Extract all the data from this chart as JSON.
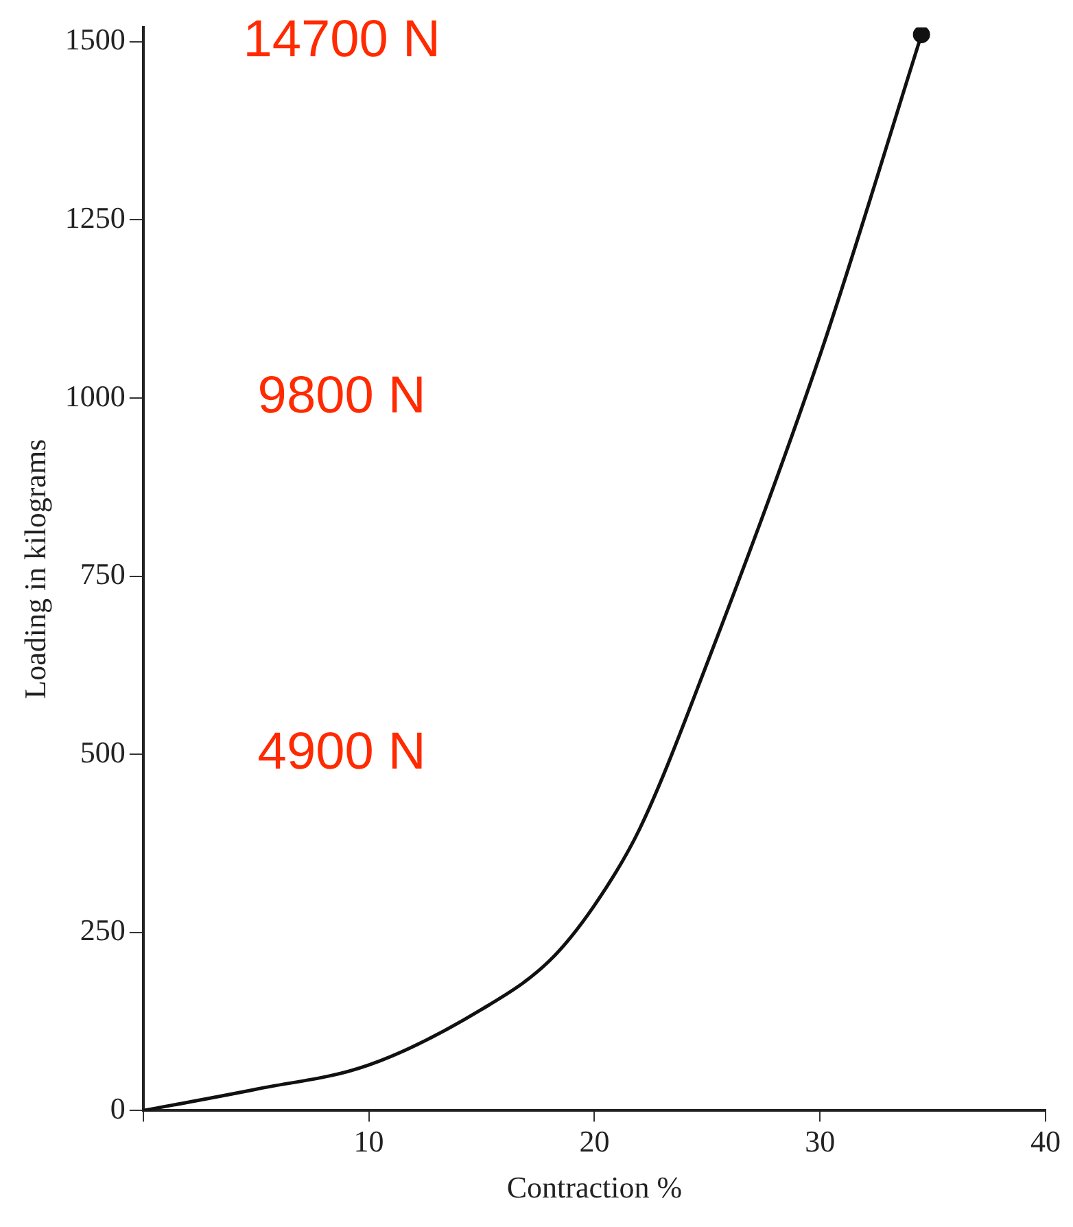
{
  "chart_data": {
    "type": "line",
    "xlabel": "Contraction %",
    "ylabel": "Loading in kilograms",
    "xlim": [
      0,
      40
    ],
    "ylim": [
      0,
      1520
    ],
    "xticks": [
      {
        "value": 0,
        "label": null
      },
      10,
      20,
      30,
      40
    ],
    "yticks": [
      0,
      250,
      500,
      750,
      1000,
      1250,
      1500
    ],
    "grid": false,
    "legend": false,
    "series": [
      {
        "color": "#111111",
        "marker": "none",
        "x": [
          0,
          5,
          10,
          15,
          18,
          20,
          22,
          25,
          30,
          34.5
        ],
        "values": [
          0,
          30,
          64,
          142,
          210,
          288,
          395,
          628,
          1060,
          1510
        ]
      },
      {
        "type": "scatter",
        "color": "#111111",
        "marker": "circle",
        "x": [
          34.5
        ],
        "values": [
          1510
        ]
      }
    ],
    "annotations": [
      "14700 N",
      "9800 N",
      "4900 N"
    ]
  }
}
